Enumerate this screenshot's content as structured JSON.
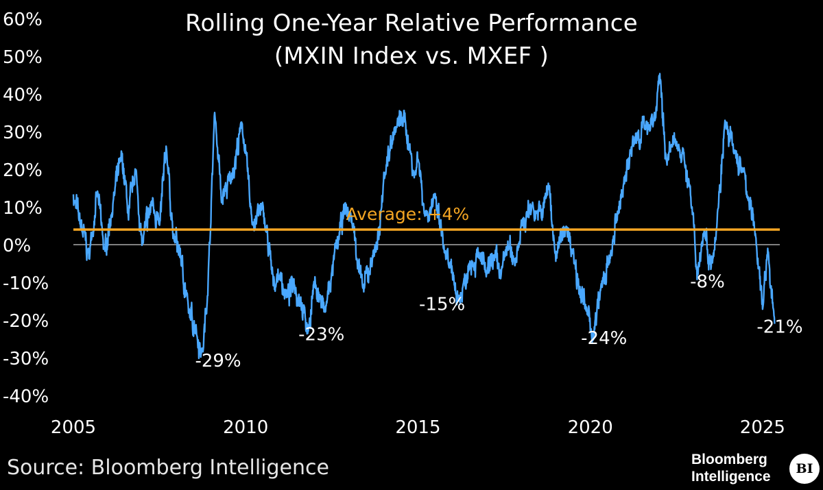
{
  "chart_data": {
    "type": "line",
    "title": "Rolling One-Year Relative Performance",
    "subtitle": "(MXIN Index vs. MXEF )",
    "xlim": [
      2005,
      2025.4
    ],
    "ylim": [
      -40,
      60
    ],
    "x_ticks": [
      2005,
      2010,
      2015,
      2020,
      2025
    ],
    "x_tick_labels": [
      "2005",
      "2010",
      "2015",
      "2020",
      "2025"
    ],
    "y_ticks": [
      60,
      50,
      40,
      30,
      20,
      10,
      0,
      -10,
      -20,
      -30,
      -40
    ],
    "y_tick_labels": [
      "60%",
      "50%",
      "40%",
      "30%",
      "20%",
      "10%",
      "0%",
      "-10%",
      "-20%",
      "-30%",
      "-40%"
    ],
    "average": {
      "value": 4,
      "label": "Average: +4%",
      "color": "#f5a623"
    },
    "zero_line_color": "#ffffff",
    "series": [
      {
        "name": "MXIN Index vs. MXEF",
        "color": "#4aa8ff",
        "anchors": [
          [
            2005.0,
            12
          ],
          [
            2005.2,
            6
          ],
          [
            2005.45,
            -3
          ],
          [
            2005.7,
            14
          ],
          [
            2005.9,
            -2
          ],
          [
            2006.1,
            8
          ],
          [
            2006.4,
            24
          ],
          [
            2006.6,
            8
          ],
          [
            2006.8,
            20
          ],
          [
            2007.0,
            0
          ],
          [
            2007.3,
            12
          ],
          [
            2007.5,
            5
          ],
          [
            2007.7,
            26
          ],
          [
            2007.9,
            2
          ],
          [
            2008.1,
            -2
          ],
          [
            2008.35,
            -18
          ],
          [
            2008.55,
            -22
          ],
          [
            2008.75,
            -29
          ],
          [
            2008.9,
            -12
          ],
          [
            2009.0,
            10
          ],
          [
            2009.1,
            36
          ],
          [
            2009.3,
            12
          ],
          [
            2009.6,
            18
          ],
          [
            2009.9,
            32
          ],
          [
            2010.2,
            5
          ],
          [
            2010.5,
            10
          ],
          [
            2010.8,
            -10
          ],
          [
            2011.0,
            -8
          ],
          [
            2011.2,
            -14
          ],
          [
            2011.4,
            -10
          ],
          [
            2011.6,
            -15
          ],
          [
            2011.8,
            -23
          ],
          [
            2012.0,
            -10
          ],
          [
            2012.3,
            -18
          ],
          [
            2012.5,
            -8
          ],
          [
            2012.7,
            2
          ],
          [
            2012.9,
            10
          ],
          [
            2013.1,
            6
          ],
          [
            2013.4,
            -12
          ],
          [
            2013.7,
            -3
          ],
          [
            2013.9,
            4
          ],
          [
            2014.0,
            18
          ],
          [
            2014.3,
            30
          ],
          [
            2014.6,
            34
          ],
          [
            2014.9,
            18
          ],
          [
            2015.0,
            24
          ],
          [
            2015.2,
            8
          ],
          [
            2015.5,
            12
          ],
          [
            2015.8,
            -3
          ],
          [
            2016.0,
            -8
          ],
          [
            2016.2,
            -15
          ],
          [
            2016.5,
            -5
          ],
          [
            2016.8,
            -3
          ],
          [
            2017.0,
            -8
          ],
          [
            2017.2,
            -3
          ],
          [
            2017.4,
            -8
          ],
          [
            2017.6,
            0
          ],
          [
            2017.8,
            -5
          ],
          [
            2018.0,
            5
          ],
          [
            2018.3,
            10
          ],
          [
            2018.6,
            8
          ],
          [
            2018.8,
            16
          ],
          [
            2019.0,
            -3
          ],
          [
            2019.3,
            5
          ],
          [
            2019.5,
            -2
          ],
          [
            2019.7,
            -12
          ],
          [
            2019.9,
            -18
          ],
          [
            2020.1,
            -24
          ],
          [
            2020.3,
            -12
          ],
          [
            2020.6,
            -3
          ],
          [
            2020.8,
            8
          ],
          [
            2021.0,
            18
          ],
          [
            2021.3,
            28
          ],
          [
            2021.6,
            32
          ],
          [
            2021.9,
            34
          ],
          [
            2022.0,
            46
          ],
          [
            2022.2,
            22
          ],
          [
            2022.5,
            28
          ],
          [
            2022.7,
            24
          ],
          [
            2022.9,
            14
          ],
          [
            2023.1,
            -8
          ],
          [
            2023.3,
            4
          ],
          [
            2023.5,
            -5
          ],
          [
            2023.7,
            8
          ],
          [
            2023.9,
            32
          ],
          [
            2024.2,
            24
          ],
          [
            2024.4,
            20
          ],
          [
            2024.6,
            12
          ],
          [
            2024.8,
            2
          ],
          [
            2025.0,
            -16
          ],
          [
            2025.15,
            -2
          ],
          [
            2025.35,
            -21
          ]
        ]
      }
    ],
    "annotations": [
      {
        "label": "-29%",
        "x": 2009.2,
        "y": -30.5
      },
      {
        "label": "-23%",
        "x": 2012.2,
        "y": -23.5
      },
      {
        "label": "-15%",
        "x": 2015.7,
        "y": -15.5
      },
      {
        "label": "-24%",
        "x": 2020.4,
        "y": -24.5
      },
      {
        "label": "-8%",
        "x": 2023.4,
        "y": -9.5
      },
      {
        "label": "-21%",
        "x": 2025.5,
        "y": -21.5
      }
    ]
  },
  "source": "Source: Bloomberg Intelligence",
  "logo": {
    "line1": "Bloomberg",
    "line2": "Intelligence",
    "badge": "BI"
  }
}
